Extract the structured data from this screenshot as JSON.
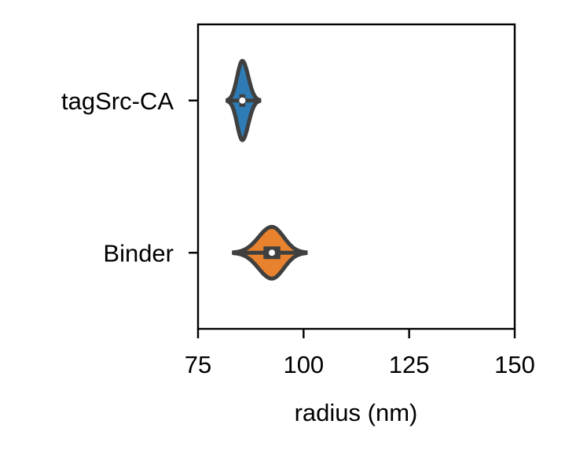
{
  "chart_data": {
    "type": "violin",
    "orientation": "horizontal",
    "xlabel": "radius (nm)",
    "ylabel": "",
    "xlim": [
      75,
      150
    ],
    "xticks": [
      75,
      100,
      125,
      150
    ],
    "categories": [
      "tagSrc-CA",
      "Binder"
    ],
    "colors": {
      "tagSrc-CA": "#2f7bb5",
      "Binder": "#e8822e"
    },
    "grid": false,
    "series": [
      {
        "category": "tagSrc-CA",
        "min": 82,
        "q1": 84.8,
        "median": 85.5,
        "q3": 86.2,
        "max": 89.5,
        "density_half_width": 0.26
      },
      {
        "category": "Binder",
        "min": 83.5,
        "q1": 90.5,
        "median": 92.5,
        "q3": 94.5,
        "max": 100.5,
        "density_half_width": 0.17
      }
    ]
  }
}
